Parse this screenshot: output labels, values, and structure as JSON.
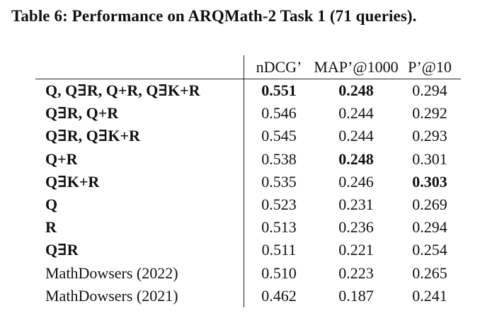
{
  "caption": "Table 6: Performance on ARQMath-2 Task 1 (71 queries).",
  "table": {
    "headers": [
      "",
      "nDCG’",
      "MAP’@1000",
      "P’@10"
    ],
    "rows": [
      {
        "method": "Q, Q∃R, Q+R, Q∃K+R",
        "method_bold": true,
        "ndcg": "0.551",
        "map": "0.248",
        "p10": "0.294",
        "bold": [
          true,
          true,
          false
        ]
      },
      {
        "method": "Q∃R, Q+R",
        "method_bold": true,
        "ndcg": "0.546",
        "map": "0.244",
        "p10": "0.292",
        "bold": [
          false,
          false,
          false
        ]
      },
      {
        "method": "Q∃R, Q∃K+R",
        "method_bold": true,
        "ndcg": "0.545",
        "map": "0.244",
        "p10": "0.293",
        "bold": [
          false,
          false,
          false
        ]
      },
      {
        "method": "Q+R",
        "method_bold": true,
        "ndcg": "0.538",
        "map": "0.248",
        "p10": "0.301",
        "bold": [
          false,
          true,
          false
        ]
      },
      {
        "method": "Q∃K+R",
        "method_bold": true,
        "ndcg": "0.535",
        "map": "0.246",
        "p10": "0.303",
        "bold": [
          false,
          false,
          true
        ]
      },
      {
        "method": "Q",
        "method_bold": true,
        "ndcg": "0.523",
        "map": "0.231",
        "p10": "0.269",
        "bold": [
          false,
          false,
          false
        ]
      },
      {
        "method": "R",
        "method_bold": true,
        "ndcg": "0.513",
        "map": "0.236",
        "p10": "0.294",
        "bold": [
          false,
          false,
          false
        ]
      },
      {
        "method": "Q∃R",
        "method_bold": true,
        "ndcg": "0.511",
        "map": "0.221",
        "p10": "0.254",
        "bold": [
          false,
          false,
          false
        ]
      },
      {
        "method": "MathDowsers (2022)",
        "method_bold": false,
        "ndcg": "0.510",
        "map": "0.223",
        "p10": "0.265",
        "bold": [
          false,
          false,
          false
        ]
      },
      {
        "method": "MathDowsers (2021)",
        "method_bold": false,
        "ndcg": "0.462",
        "map": "0.187",
        "p10": "0.241",
        "bold": [
          false,
          false,
          false
        ]
      }
    ]
  }
}
